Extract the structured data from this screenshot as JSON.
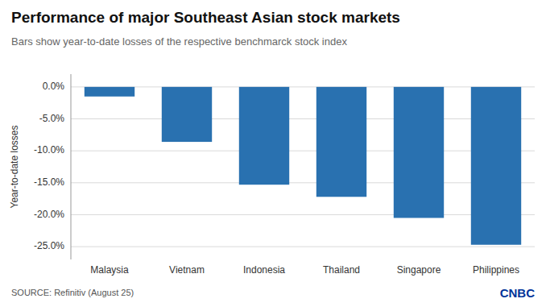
{
  "chart_data": {
    "type": "bar",
    "title": "Performance of major Southeast Asian stock markets",
    "subtitle": "Bars show year-to-date losses of the respective benchmarck stock index",
    "ylabel": "Year-to-date losses",
    "source": "SOURCE: Refinitiv (August 25)",
    "annotations": [
      "CNBC"
    ],
    "categories": [
      "Malaysia",
      "Vietnam",
      "Indonesia",
      "Thailand",
      "Singapore",
      "Philippines"
    ],
    "values": [
      -1.5,
      -8.6,
      -15.3,
      -17.2,
      -20.5,
      -24.7
    ],
    "color": "#2971b0",
    "ylim": [
      -27,
      2.0
    ],
    "yticks": [
      {
        "value": 0.0,
        "label": "0.0%"
      },
      {
        "value": -5.0,
        "label": "-5.0%"
      },
      {
        "value": -10.0,
        "label": "-10.0%"
      },
      {
        "value": -15.0,
        "label": "-15.0%"
      },
      {
        "value": -20.0,
        "label": "-20.0%"
      },
      {
        "value": -25.0,
        "label": "-25.0%"
      }
    ],
    "grid": true
  }
}
